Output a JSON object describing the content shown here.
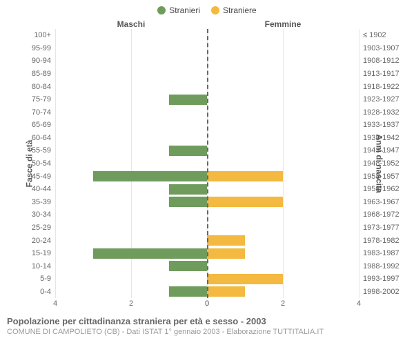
{
  "chart": {
    "legend": [
      {
        "label": "Stranieri",
        "color": "#6f9c5d"
      },
      {
        "label": "Straniere",
        "color": "#f3b940"
      }
    ],
    "left_heading": "Maschi",
    "right_heading": "Femmine",
    "left_axis_title": "Fasce di età",
    "right_axis_title": "Anni di nascita",
    "age_labels": [
      "100+",
      "95-99",
      "90-94",
      "85-89",
      "80-84",
      "75-79",
      "70-74",
      "65-69",
      "60-64",
      "55-59",
      "50-54",
      "45-49",
      "40-44",
      "35-39",
      "30-34",
      "25-29",
      "20-24",
      "15-19",
      "10-14",
      "5-9",
      "0-4"
    ],
    "birth_labels": [
      "≤ 1902",
      "1903-1907",
      "1908-1912",
      "1913-1917",
      "1918-1922",
      "1923-1927",
      "1928-1932",
      "1933-1937",
      "1938-1942",
      "1943-1947",
      "1948-1952",
      "1953-1957",
      "1958-1962",
      "1963-1967",
      "1968-1972",
      "1973-1977",
      "1978-1982",
      "1983-1987",
      "1988-1992",
      "1993-1997",
      "1998-2002"
    ],
    "male_values": [
      0,
      0,
      0,
      0,
      0,
      1,
      0,
      0,
      0,
      1,
      0,
      3,
      1,
      1,
      0,
      0,
      0,
      3,
      1,
      0,
      1
    ],
    "female_values": [
      0,
      0,
      0,
      0,
      0,
      0,
      0,
      0,
      0,
      0,
      0,
      2,
      0,
      2,
      0,
      0,
      1,
      1,
      0,
      2,
      1
    ],
    "male_color": "#6f9c5d",
    "female_color": "#f3b940",
    "x_max": 4,
    "x_ticks_left": [
      4,
      2,
      0
    ],
    "x_ticks_right": [
      0,
      2,
      4
    ],
    "grid_positions_pct": [
      0,
      50,
      100
    ],
    "background_color": "#ffffff",
    "grid_color": "#e6e6e6",
    "center_line_color": "#666666"
  },
  "footer": {
    "title": "Popolazione per cittadinanza straniera per età e sesso - 2003",
    "sub": "COMUNE DI CAMPOLIETO (CB) - Dati ISTAT 1° gennaio 2003 - Elaborazione TUTTITALIA.IT"
  }
}
